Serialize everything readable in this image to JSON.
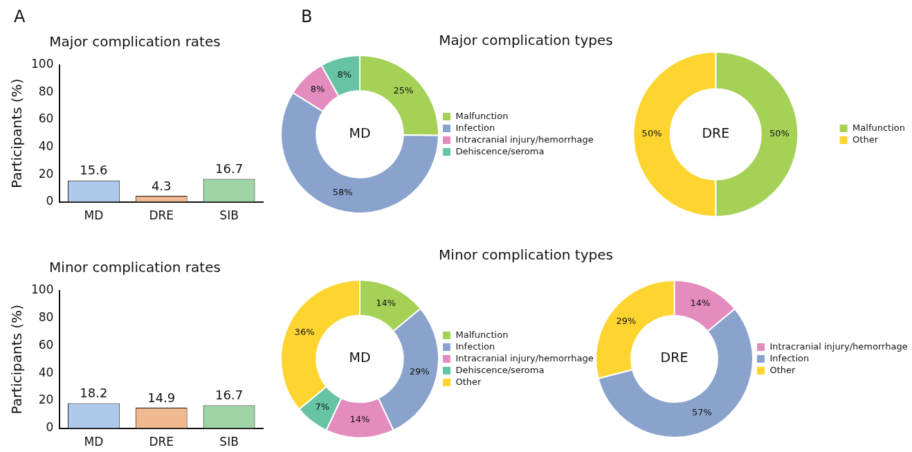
{
  "chart_data": [
    {
      "type": "bar",
      "title": "Major complication rates",
      "ylabel": "Participants (%)",
      "categories": [
        "MD",
        "DRE",
        "SIB"
      ],
      "values": [
        15.6,
        4.3,
        16.7
      ],
      "colors": [
        "#aec9ea",
        "#f0b990",
        "#9fd4a4"
      ],
      "ylim": [
        0,
        100
      ],
      "yticks": [
        0,
        20,
        40,
        60,
        80,
        100
      ],
      "grid": false,
      "data_labels": true,
      "legend": false,
      "annotations": [
        "A"
      ]
    },
    {
      "type": "donut",
      "title": "Major complication types",
      "categories": [
        "Malfunction",
        "Infection",
        "Intracranial injury/hemorrhage",
        "Dehiscence/seroma"
      ],
      "values": [
        25,
        58,
        8,
        8
      ],
      "colors": [
        "#a5d156",
        "#8aa3cd",
        "#e38cbd",
        "#66c4a5"
      ],
      "value_labels": [
        "25%",
        "58%",
        "8%",
        "8%"
      ],
      "legend": "right",
      "annotations": [
        "B",
        "MD"
      ]
    },
    {
      "type": "donut",
      "categories": [
        "Malfunction",
        "Other"
      ],
      "values": [
        50,
        50
      ],
      "colors": [
        "#a5d156",
        "#fed530"
      ],
      "value_labels": [
        "50%",
        "50%"
      ],
      "legend": "right",
      "annotations": [
        "DRE"
      ]
    },
    {
      "type": "bar",
      "title": "Minor complication rates",
      "ylabel": "Participants (%)",
      "categories": [
        "MD",
        "DRE",
        "SIB"
      ],
      "values": [
        18.2,
        14.9,
        16.7
      ],
      "colors": [
        "#aec9ea",
        "#f0b990",
        "#9fd4a4"
      ],
      "ylim": [
        0,
        100
      ],
      "yticks": [
        0,
        20,
        40,
        60,
        80,
        100
      ],
      "grid": false,
      "data_labels": true,
      "legend": false
    },
    {
      "type": "donut",
      "title": "Minor complication types",
      "categories": [
        "Malfunction",
        "Infection",
        "Intracranial injury/hemorrhage",
        "Dehiscence/seroma",
        "Other"
      ],
      "values": [
        14,
        29,
        14,
        7,
        36
      ],
      "colors": [
        "#a5d156",
        "#8aa3cd",
        "#e38cbd",
        "#66c4a5",
        "#fed530"
      ],
      "value_labels": [
        "14%",
        "29%",
        "14%",
        "7%",
        "36%"
      ],
      "legend": "right",
      "annotations": [
        "MD"
      ]
    },
    {
      "type": "donut",
      "categories": [
        "Intracranial injury/hemorrhage",
        "Infection",
        "Other"
      ],
      "values": [
        14,
        57,
        29
      ],
      "colors": [
        "#e38cbd",
        "#8aa3cd",
        "#fed530"
      ],
      "value_labels": [
        "14%",
        "57%",
        "29%"
      ],
      "legend": "right",
      "annotations": [
        "DRE"
      ]
    }
  ]
}
